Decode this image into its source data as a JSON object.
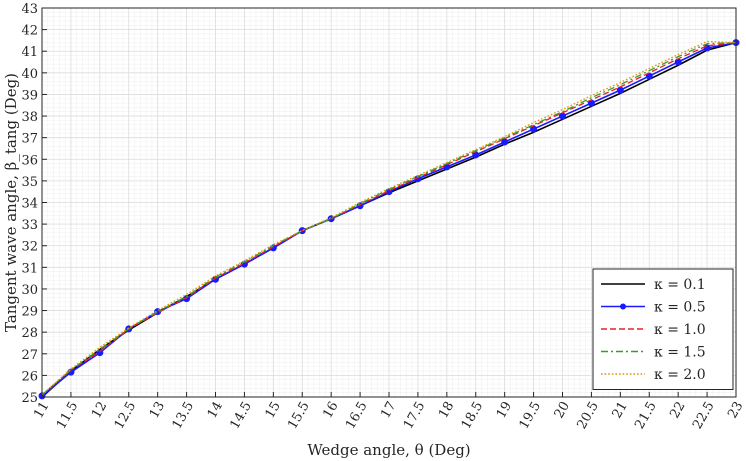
{
  "chart_data": {
    "type": "line",
    "xlabel": "Wedge angle, θ (Deg)",
    "ylabel": "Tangent wave angle, β_tang (Deg)",
    "xlim": [
      11,
      23
    ],
    "ylim": [
      25,
      43
    ],
    "x_ticks": [
      11,
      11.5,
      12,
      12.5,
      13,
      13.5,
      14,
      14.5,
      15,
      15.5,
      16,
      16.5,
      17,
      17.5,
      18,
      18.5,
      19,
      19.5,
      20,
      20.5,
      21,
      21.5,
      22,
      22.5,
      23
    ],
    "y_ticks": [
      25,
      26,
      27,
      28,
      29,
      30,
      31,
      32,
      33,
      34,
      35,
      36,
      37,
      38,
      39,
      40,
      41,
      42,
      43
    ],
    "grid": true,
    "minor_grid": true,
    "legend_position": "bottom-right",
    "x": [
      11,
      11.5,
      12,
      12.5,
      13,
      13.5,
      14,
      14.5,
      15,
      15.5,
      16,
      16.5,
      17,
      17.5,
      18,
      18.5,
      19,
      19.5,
      20,
      20.5,
      21,
      21.5,
      22,
      22.5,
      23
    ],
    "series": [
      {
        "name": "κ = 0.1",
        "color": "#000000",
        "style": "solid",
        "marker": "none",
        "values": [
          25.0,
          26.2,
          27.2,
          28.1,
          28.9,
          29.65,
          30.45,
          31.15,
          31.9,
          32.7,
          33.25,
          33.85,
          34.45,
          35.0,
          35.55,
          36.1,
          36.7,
          37.25,
          37.85,
          38.45,
          39.05,
          39.7,
          40.35,
          41.05,
          41.4
        ]
      },
      {
        "name": "κ = 0.5",
        "color": "#1a1aff",
        "style": "solid",
        "marker": "circle",
        "values": [
          25.05,
          26.15,
          27.05,
          28.15,
          28.95,
          29.55,
          30.45,
          31.15,
          31.9,
          32.7,
          33.25,
          33.85,
          34.5,
          35.1,
          35.65,
          36.2,
          36.8,
          37.4,
          38.0,
          38.6,
          39.2,
          39.85,
          40.5,
          41.15,
          41.4
        ]
      },
      {
        "name": "κ = 1.0",
        "color": "#e8202a",
        "style": "dashed",
        "marker": "none",
        "values": [
          25.1,
          26.25,
          27.1,
          28.15,
          28.9,
          29.6,
          30.5,
          31.2,
          31.95,
          32.7,
          33.25,
          33.9,
          34.55,
          35.15,
          35.75,
          36.35,
          36.95,
          37.55,
          38.15,
          38.75,
          39.35,
          40.0,
          40.65,
          41.25,
          41.4
        ]
      },
      {
        "name": "κ = 1.5",
        "color": "#3c9a2a",
        "style": "dashdot",
        "marker": "none",
        "values": [
          25.1,
          26.25,
          27.2,
          28.15,
          28.95,
          29.65,
          30.55,
          31.25,
          32.0,
          32.7,
          33.25,
          33.95,
          34.6,
          35.2,
          35.8,
          36.4,
          37.0,
          37.6,
          38.2,
          38.85,
          39.45,
          40.1,
          40.75,
          41.35,
          41.4
        ]
      },
      {
        "name": "κ = 2.0",
        "color": "#d69a00",
        "style": "dotted",
        "marker": "none",
        "values": [
          25.1,
          26.3,
          27.3,
          28.2,
          29.0,
          29.75,
          30.6,
          31.3,
          32.05,
          32.7,
          33.3,
          34.0,
          34.65,
          35.25,
          35.85,
          36.45,
          37.05,
          37.7,
          38.3,
          38.95,
          39.55,
          40.2,
          40.85,
          41.45,
          41.4
        ]
      }
    ]
  }
}
